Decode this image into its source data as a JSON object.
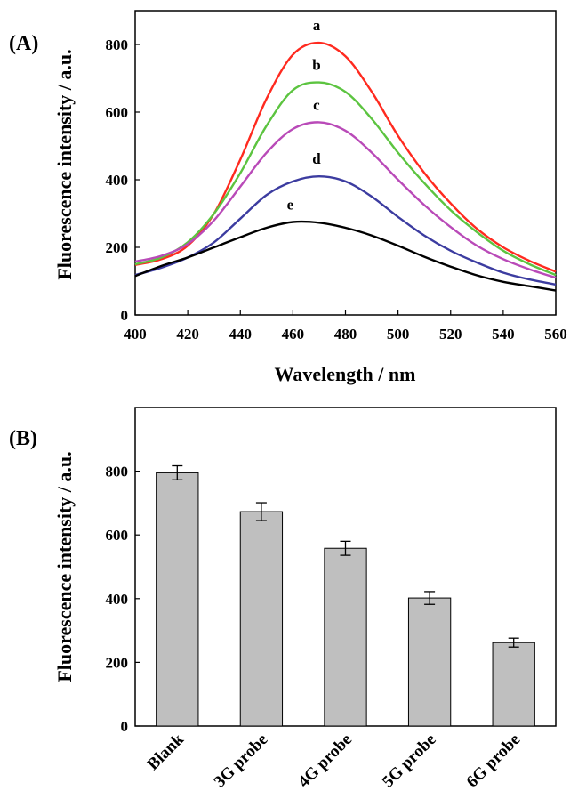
{
  "chart_data": [
    {
      "type": "line",
      "panel_label": "(A)",
      "xlabel": "Wavelength / nm",
      "ylabel": "Fluorescence intensity / a.u.",
      "xlim": [
        400,
        560
      ],
      "ylim": [
        0,
        900
      ],
      "xticks": [
        400,
        420,
        440,
        460,
        480,
        500,
        520,
        540,
        560
      ],
      "yticks": [
        0,
        200,
        400,
        600,
        800
      ],
      "grid": false,
      "series": [
        {
          "name": "a",
          "color": "#ff2a1f",
          "x": [
            400,
            410,
            420,
            430,
            440,
            450,
            460,
            470,
            480,
            490,
            500,
            510,
            520,
            530,
            540,
            550,
            560
          ],
          "y": [
            148,
            165,
            205,
            300,
            460,
            640,
            770,
            805,
            765,
            660,
            530,
            420,
            330,
            255,
            200,
            160,
            128
          ]
        },
        {
          "name": "b",
          "color": "#5cc440",
          "x": [
            400,
            410,
            420,
            430,
            440,
            450,
            460,
            470,
            480,
            490,
            500,
            510,
            520,
            530,
            540,
            550,
            560
          ],
          "y": [
            150,
            170,
            215,
            300,
            420,
            560,
            665,
            688,
            660,
            580,
            480,
            390,
            310,
            245,
            190,
            150,
            118
          ]
        },
        {
          "name": "c",
          "color": "#b94ab8",
          "x": [
            400,
            410,
            420,
            430,
            440,
            450,
            460,
            470,
            480,
            490,
            500,
            510,
            520,
            530,
            540,
            550,
            560
          ],
          "y": [
            158,
            175,
            210,
            280,
            380,
            480,
            550,
            570,
            545,
            480,
            400,
            325,
            260,
            205,
            165,
            135,
            110
          ]
        },
        {
          "name": "d",
          "color": "#3c3ca0",
          "x": [
            400,
            410,
            420,
            430,
            440,
            450,
            460,
            470,
            480,
            490,
            500,
            510,
            520,
            530,
            540,
            550,
            560
          ],
          "y": [
            118,
            140,
            170,
            215,
            285,
            355,
            395,
            410,
            395,
            350,
            290,
            235,
            190,
            155,
            125,
            105,
            90
          ]
        },
        {
          "name": "e",
          "color": "#000000",
          "x": [
            400,
            410,
            420,
            430,
            440,
            450,
            460,
            470,
            480,
            490,
            500,
            510,
            520,
            530,
            540,
            550,
            560
          ],
          "y": [
            115,
            145,
            170,
            200,
            230,
            258,
            275,
            273,
            258,
            235,
            205,
            172,
            143,
            117,
            98,
            85,
            72
          ]
        }
      ]
    },
    {
      "type": "bar",
      "panel_label": "(B)",
      "xlabel": "",
      "ylabel": "Fluorescence intensity / a.u.",
      "ylim": [
        0,
        1000
      ],
      "yticks": [
        0,
        200,
        400,
        600,
        800
      ],
      "grid": false,
      "categories": [
        "Blank",
        "3G probe",
        "4G probe",
        "5G probe",
        "6G probe"
      ],
      "values": [
        795,
        673,
        558,
        402,
        262
      ],
      "errors": [
        22,
        28,
        22,
        20,
        14
      ],
      "bar_color": "#bfbfbf"
    }
  ]
}
